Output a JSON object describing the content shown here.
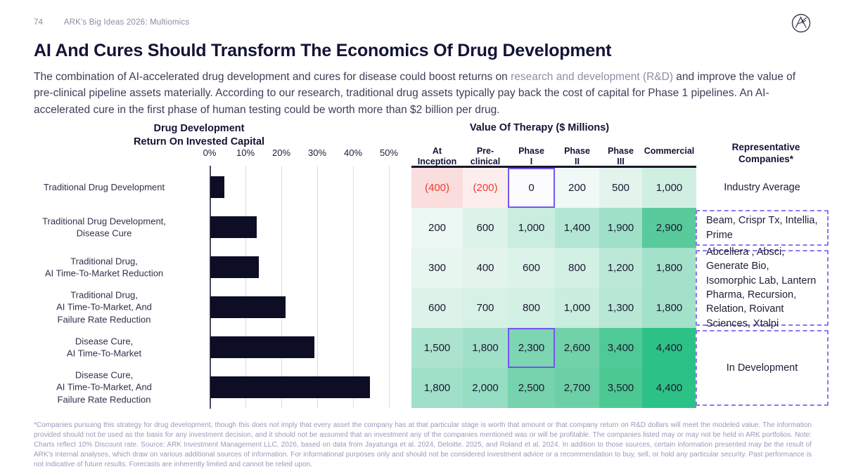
{
  "page": {
    "number": "74",
    "breadcrumb": "ARK's Big Ideas 2026: Multiomics",
    "title": "AI And Cures Should Transform The Economics Of Drug Development",
    "subtitle_pre": "The combination of AI-accelerated drug development and cures for disease could boost returns on ",
    "subtitle_link": "research and development (R&D)",
    "subtitle_post": " and improve the value of pre-clinical pipeline assets materially. According to our research, traditional drug assets typically pay back the cost of capital for Phase 1 pipelines. An AI-accelerated cure in the first phase of human testing could be worth more than $2 billion per drug.",
    "footnote": "*Companies pursuing this strategy for drug development, though this does not imply that every asset the company has at that particular stage is worth that amount or that company return on R&D dollars will meet the modeled value. The information provided should not be used as the basis for any investment decision, and it should not be assumed that an investment any of the companies mentioned was or will be profitable. The companies listed may or may not be held in ARK portfolios. Note: Charts reflect 10% Discount rate. Source: ARK Investment Management LLC, 2026, based on data from Jayatunga et al. 2024, Deloitte. 2025, and Roland et al. 2024. In addition to those sources, certain information presented may be the result of ARK's internal analyses, which draw on various additional sources of information. For informational purposes only and should not be considered investment advice or a recommendation to buy, sell, or hold any particular security. Past performance is not indicative of future results. Forecasts are inherently limited and cannot be relied upon."
  },
  "icons": {
    "logo": "ark-circle-logo"
  },
  "colors": {
    "headline_navy": "#131335",
    "bar_navy": "#0d0d26",
    "negative_red": "#ee3b33",
    "highlight_purple": "#7257f0",
    "dashed_border_purple": "#8678f2",
    "heatmap_max_green": "#2cc287",
    "muted_gray": "#8e8ea8"
  },
  "chart_data": [
    {
      "type": "bar",
      "orientation": "horizontal",
      "title": "Drug Development Return On Invested Capital",
      "title_lines": [
        "Drug Development",
        "Return On Invested Capital"
      ],
      "categories": [
        "Traditional Drug Development",
        "Traditional Drug Development, Disease Cure",
        "Traditional Drug, AI Time-To-Market Reduction",
        "Traditional Drug, AI Time-To-Market, And Failure Rate Reduction",
        "Disease Cure, AI Time-To-Market",
        "Disease Cure, AI Time-To-Market, And Failure Rate Reduction"
      ],
      "label_lines": [
        [
          "Traditional Drug Development"
        ],
        [
          "Traditional Drug Development,",
          "Disease Cure"
        ],
        [
          "Traditional Drug,",
          "AI Time-To-Market Reduction"
        ],
        [
          "Traditional Drug,",
          "AI Time-To-Market, And",
          "Failure Rate Reduction"
        ],
        [
          "Disease Cure,",
          "AI Time-To-Market"
        ],
        [
          "Disease Cure,",
          "AI Time-To-Market, And",
          "Failure Rate Reduction"
        ]
      ],
      "values": [
        4,
        13,
        13.5,
        21,
        29,
        44.5
      ],
      "unit": "%",
      "xlim": [
        0,
        50
      ],
      "tick_labels": [
        "0%",
        "10%",
        "20%",
        "30%",
        "40%",
        "50%"
      ],
      "grid": true,
      "xlabel": "",
      "ylabel": ""
    },
    {
      "type": "heatmap",
      "title": "Value Of Therapy ($ Millions)",
      "columns": [
        "At Inception",
        "Pre-clinical",
        "Phase I",
        "Phase II",
        "Phase III",
        "Commercial"
      ],
      "column_lines": [
        [
          "At",
          "Inception"
        ],
        [
          "Pre-",
          "clinical"
        ],
        [
          "Phase",
          "I"
        ],
        [
          "Phase",
          "II"
        ],
        [
          "Phase",
          "III"
        ],
        [
          "Commercial"
        ]
      ],
      "rows": [
        {
          "values": [
            "(400)",
            "(200)",
            "0",
            "200",
            "500",
            "1,000"
          ],
          "numeric": [
            -400,
            -200,
            0,
            200,
            500,
            1000
          ],
          "colors": [
            "#fadddd",
            "#fdeeee",
            "#fcfcfe",
            "#f0f9f5",
            "#e2f4ec",
            "#d0efe2"
          ],
          "negative": [
            true,
            true,
            false,
            false,
            false,
            false
          ]
        },
        {
          "values": [
            "200",
            "600",
            "1,000",
            "1,400",
            "1,900",
            "2,900"
          ],
          "numeric": [
            200,
            600,
            1000,
            1400,
            1900,
            2900
          ],
          "colors": [
            "#ecf8f3",
            "#dcf3e9",
            "#c9edde",
            "#b3e6d4",
            "#9fe0c9",
            "#58ca9c"
          ],
          "negative": [
            false,
            false,
            false,
            false,
            false,
            false
          ]
        },
        {
          "values": [
            "300",
            "400",
            "600",
            "800",
            "1,200",
            "1,800"
          ],
          "numeric": [
            300,
            400,
            600,
            800,
            1200,
            1800
          ],
          "colors": [
            "#e7f6ef",
            "#e2f4ec",
            "#dcf3e9",
            "#d3f0e4",
            "#bce8d8",
            "#a3e1cb"
          ],
          "negative": [
            false,
            false,
            false,
            false,
            false,
            false
          ]
        },
        {
          "values": [
            "600",
            "700",
            "800",
            "1,000",
            "1,300",
            "1,800"
          ],
          "numeric": [
            600,
            700,
            800,
            1000,
            1300,
            1800
          ],
          "colors": [
            "#dcf3e9",
            "#d8f1e6",
            "#d3f0e4",
            "#c9edde",
            "#b8e7d6",
            "#a3e1cb"
          ],
          "negative": [
            false,
            false,
            false,
            false,
            false,
            false
          ]
        },
        {
          "values": [
            "1,500",
            "1,800",
            "2,300",
            "2,600",
            "3,400",
            "4,400"
          ],
          "numeric": [
            1500,
            1800,
            2300,
            2600,
            3400,
            4400
          ],
          "colors": [
            "#abe3ce",
            "#a0e0c9",
            "#7dd5b2",
            "#71d2aa",
            "#4fca96",
            "#2cc287"
          ],
          "negative": [
            false,
            false,
            false,
            false,
            false,
            false
          ]
        },
        {
          "values": [
            "1,800",
            "2,000",
            "2,500",
            "2,700",
            "3,500",
            "4,400"
          ],
          "numeric": [
            1800,
            2000,
            2500,
            2700,
            3500,
            4400
          ],
          "colors": [
            "#a0e0c9",
            "#95ddc3",
            "#76d3ad",
            "#6cd0a6",
            "#4cc993",
            "#2cc287"
          ],
          "negative": [
            false,
            false,
            false,
            false,
            false,
            false
          ]
        }
      ],
      "highlight_cells": [
        [
          0,
          2
        ],
        [
          4,
          2
        ]
      ],
      "companies_header_lines": [
        "Representative",
        "Companies*"
      ],
      "company_groups": [
        {
          "label": "Industry Average",
          "rows": [
            0
          ],
          "boxed": false,
          "align": "center"
        },
        {
          "label": "Beam, Crispr Tx, Intellia, Prime",
          "rows": [
            1
          ],
          "boxed": true,
          "align": "left"
        },
        {
          "label": "Abcellera , Absci, Generate Bio, Isomorphic Lab, Lantern Pharma, Recursion, Relation, Roivant Sciences, Xtalpi",
          "rows": [
            2,
            3
          ],
          "boxed": true,
          "align": "left"
        },
        {
          "label": "In Development",
          "rows": [
            4,
            5
          ],
          "boxed": true,
          "align": "center"
        }
      ]
    }
  ]
}
